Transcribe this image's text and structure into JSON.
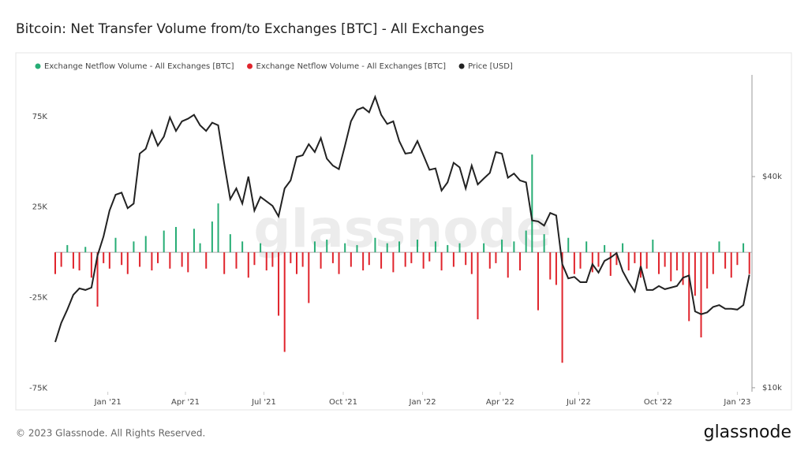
{
  "chart_data": {
    "type": "bar",
    "title": "Bitcoin: Net Transfer Volume from/to Exchanges [BTC] - All Exchanges",
    "watermark": "glassnode",
    "x": [
      0,
      7,
      14,
      21,
      28,
      35,
      42,
      49,
      56,
      63,
      70,
      77,
      84,
      91,
      98,
      105,
      112,
      119,
      126,
      133,
      140,
      147,
      154,
      161,
      168,
      175,
      182,
      189,
      196,
      203,
      210,
      217,
      224,
      231,
      238,
      245,
      252,
      259,
      266,
      273,
      280,
      287,
      294,
      301,
      308,
      315,
      322,
      329,
      336,
      343,
      350,
      357,
      364,
      371,
      378,
      385,
      392,
      399,
      406,
      413,
      420,
      427,
      434,
      441,
      448,
      455,
      462,
      469,
      476,
      483,
      490,
      497,
      504,
      511,
      518,
      525,
      532,
      539,
      546,
      553,
      560,
      567,
      574,
      581,
      588,
      595,
      602,
      609,
      616,
      623,
      630,
      637,
      644,
      651,
      658,
      665,
      672,
      679,
      686,
      693,
      700,
      707,
      714,
      721,
      728,
      735,
      742,
      749,
      756,
      763,
      770,
      777,
      784,
      791,
      798,
      805
    ],
    "xlim": [
      0,
      808
    ],
    "xticks": [
      {
        "value": 61,
        "label": "Jan '21"
      },
      {
        "value": 151,
        "label": "Apr '21"
      },
      {
        "value": 242,
        "label": "Jul '21"
      },
      {
        "value": 334,
        "label": "Oct '21"
      },
      {
        "value": 426,
        "label": "Jan '22"
      },
      {
        "value": 516,
        "label": "Apr '22"
      },
      {
        "value": 607,
        "label": "Jul '22"
      },
      {
        "value": 699,
        "label": "Oct '22"
      },
      {
        "value": 791,
        "label": "Jan '23"
      }
    ],
    "ylim": [
      -77000,
      98000
    ],
    "yticks": [
      {
        "value": -75000,
        "label": "-75K"
      },
      {
        "value": -25000,
        "label": "-25K"
      },
      {
        "value": 25000,
        "label": "25K"
      },
      {
        "value": 75000,
        "label": "75K"
      }
    ],
    "y2lim": [
      9740,
      78000
    ],
    "y2ticks": [
      {
        "value": 10000,
        "label": "$10k"
      },
      {
        "value": 40000,
        "label": "$40k"
      }
    ],
    "y2log": true,
    "grid": false,
    "series": [
      {
        "name": "Exchange Netflow Volume - All Exchanges [BTC]",
        "color": "#27ad75",
        "values": [
          null,
          null,
          4000,
          null,
          null,
          3000,
          null,
          null,
          null,
          null,
          8000,
          null,
          null,
          6000,
          null,
          9000,
          null,
          null,
          12000,
          null,
          14000,
          null,
          null,
          13000,
          5000,
          null,
          17000,
          27000,
          null,
          10000,
          null,
          6000,
          null,
          null,
          5000,
          null,
          null,
          null,
          null,
          null,
          null,
          null,
          null,
          6000,
          null,
          7000,
          null,
          null,
          5000,
          null,
          4000,
          null,
          null,
          8000,
          null,
          5000,
          null,
          6000,
          null,
          null,
          7000,
          null,
          null,
          6000,
          null,
          4000,
          null,
          5000,
          null,
          null,
          null,
          5000,
          null,
          null,
          7000,
          null,
          6000,
          null,
          12000,
          54000,
          null,
          10000,
          null,
          null,
          null,
          8000,
          null,
          null,
          6000,
          null,
          null,
          4000,
          null,
          null,
          5000,
          null,
          null,
          null,
          null,
          7000,
          null,
          null,
          null,
          null,
          null,
          null,
          null,
          null,
          null,
          null,
          6000,
          null,
          null,
          null,
          5000,
          null
        ]
      },
      {
        "name": "Exchange Netflow Volume - All Exchanges [BTC]",
        "color": "#e0242c",
        "values": [
          -12000,
          -8000,
          null,
          -9000,
          -10000,
          null,
          -14000,
          -30000,
          -6000,
          -9000,
          null,
          -7000,
          -12000,
          null,
          -8000,
          null,
          -10000,
          -6000,
          null,
          -9000,
          null,
          -8000,
          -11000,
          null,
          null,
          -9000,
          null,
          null,
          -12000,
          null,
          -9000,
          null,
          -14000,
          -7000,
          null,
          -10000,
          -8000,
          -35000,
          -55000,
          -6000,
          -12000,
          -8000,
          -28000,
          null,
          -9000,
          null,
          -6000,
          -12000,
          null,
          -8000,
          null,
          -10000,
          -7000,
          null,
          -9000,
          null,
          -11000,
          null,
          -8000,
          -6000,
          null,
          -9000,
          -5000,
          null,
          -10000,
          null,
          -8000,
          null,
          -7000,
          -12000,
          -37000,
          null,
          -9000,
          -6000,
          null,
          -14000,
          null,
          -10000,
          null,
          null,
          -32000,
          null,
          -15000,
          -18000,
          -61000,
          null,
          -12000,
          -9000,
          null,
          -11000,
          -8000,
          null,
          -13000,
          -7000,
          null,
          -10000,
          -6000,
          -14000,
          -9000,
          null,
          -12000,
          -8000,
          -16000,
          -10000,
          -18000,
          -38000,
          -24000,
          -47000,
          -20000,
          -12000,
          null,
          -9000,
          -14000,
          -7000,
          null,
          -12000
        ]
      },
      {
        "name": "Price [USD]",
        "color": "#222222",
        "type": "line",
        "axis": "y2",
        "values": [
          13500,
          15300,
          16700,
          18400,
          19200,
          19000,
          19300,
          23800,
          27000,
          32000,
          35500,
          36000,
          32500,
          33500,
          46500,
          48000,
          54000,
          49000,
          52000,
          59000,
          54000,
          57500,
          58500,
          60000,
          56000,
          54000,
          57000,
          56000,
          43500,
          34500,
          37000,
          33500,
          40000,
          32000,
          35000,
          34000,
          33000,
          30800,
          37000,
          39000,
          45500,
          46000,
          49500,
          47000,
          51500,
          45000,
          43000,
          42000,
          49000,
          57500,
          62000,
          63000,
          61000,
          67500,
          60000,
          56500,
          57500,
          50500,
          46500,
          46800,
          50500,
          46000,
          41800,
          42200,
          36500,
          38500,
          43800,
          42500,
          37000,
          43000,
          38000,
          39500,
          41000,
          47000,
          46500,
          39700,
          40800,
          39000,
          38500,
          30000,
          29800,
          29000,
          31500,
          31000,
          22500,
          20500,
          20700,
          20000,
          20000,
          22500,
          21300,
          23000,
          23500,
          24200,
          21500,
          20000,
          18800,
          22200,
          19000,
          19000,
          19500,
          19100,
          19300,
          19500,
          20600,
          20900,
          16500,
          16200,
          16400,
          17000,
          17200,
          16800,
          16800,
          16700,
          17200,
          21000
        ]
      }
    ]
  },
  "footer": {
    "copyright": "© 2023 Glassnode. All Rights Reserved.",
    "logo": "glassnode"
  }
}
